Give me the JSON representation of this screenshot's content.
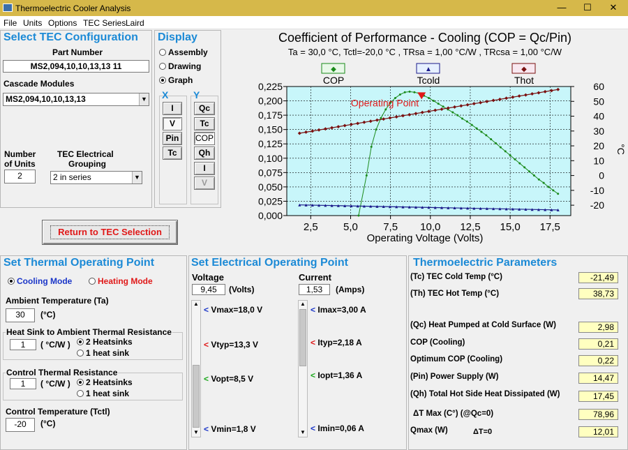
{
  "window": {
    "title": "Thermoelectric Cooler Analysis",
    "minimize": "—",
    "maximize": "☐",
    "close": "✕"
  },
  "menu": [
    "File",
    "Units",
    "Options",
    "TEC Series",
    "Laird"
  ],
  "tec_config": {
    "title": "Select TEC Configuration",
    "part_number_label": "Part Number",
    "part_number": "MS2,094,10,10,13,13 11",
    "cascade_label": "Cascade Modules",
    "cascade_value": "MS2,094,10,10,13,13",
    "units_label_1": "Number",
    "units_label_2": "of Units",
    "units_value": "2",
    "grouping_label_1": "TEC Electrical",
    "grouping_label_2": "Grouping",
    "grouping_value": "2 in series",
    "return_button": "Return to TEC Selection"
  },
  "display": {
    "title": "Display",
    "options": [
      "Assembly",
      "Drawing",
      "Graph"
    ],
    "selected": "Graph",
    "x_label": "X",
    "y_label": "Y",
    "x_buttons": [
      "I",
      "V",
      "Pin",
      "Tc"
    ],
    "y_buttons": [
      "Qc",
      "Tc",
      "COP",
      "Qh",
      "I",
      "V"
    ]
  },
  "thermal": {
    "title": "Set Thermal Operating Point",
    "cooling": "Cooling Mode",
    "heating": "Heating Mode",
    "ambient_label": "Ambient Temperature (Ta)",
    "ambient_value": "30",
    "celsius": "(°C)",
    "hs_title": "Heat Sink to Ambient Thermal Resistance",
    "hs_value": "1",
    "cw": "( °C/W )",
    "opt_2hs": "2 Heatsinks",
    "opt_1hs": "1 heat sink",
    "ctrl_title": "Control Thermal Resistance",
    "ctrl_value": "1",
    "control_temp_label": "Control Temperature (Tctl)",
    "control_temp_value": "-20"
  },
  "electrical": {
    "title": "Set Electrical Operating Point",
    "voltage_label": "Voltage",
    "voltage_value": "9,45",
    "volts": "(Volts)",
    "current_label": "Current",
    "current_value": "1,53",
    "amps": "(Amps)",
    "v_marks": [
      "Vmax=18,0 V",
      "Vtyp=13,3 V",
      "Vopt=8,5 V",
      "Vmin=1,8 V"
    ],
    "i_marks": [
      "Imax=3,00 A",
      "Ityp=2,18 A",
      "Iopt=1,36 A",
      "Imin=0,06 A"
    ]
  },
  "params": {
    "title": "Thermoelectric Parameters",
    "rows": [
      {
        "label": "(Tc) TEC Cold Temp (°C)",
        "value": "-21,49"
      },
      {
        "label": "(Th) TEC Hot Temp (°C)",
        "value": "38,73"
      },
      {
        "label": "(Qc) Heat Pumped at Cold Surface (W)",
        "value": "2,98"
      },
      {
        "label": "COP (Cooling)",
        "value": "0,21"
      },
      {
        "label": "Optimum COP (Cooling)",
        "value": "0,22"
      },
      {
        "label": "(Pin) Power Supply (W)",
        "value": "14,47"
      },
      {
        "label": "(Qh) Total Hot Side Heat Dissipated (W)",
        "value": "17,45"
      },
      {
        "label": "ΔT Max (C°) (@Qc=0)",
        "value": "78,96"
      },
      {
        "label": "Qmax (W)",
        "value": "12,01"
      }
    ],
    "dt_zero": "ΔT=0"
  },
  "chart_data": {
    "type": "line",
    "title": "Coefficient of Performance - Cooling (COP = Qc/Pin)",
    "subtitle": "Ta = 30,0 °C, Tctl=-20,0 °C , TRsa = 1,00 °C/W , TRcsa = 1,00 °C/W",
    "xlabel": "Operating Voltage (Volts)",
    "ylabel_right": "°C",
    "xlim": [
      1.0,
      18.8
    ],
    "ylim_left": [
      0,
      0.225
    ],
    "ylim_right": [
      -27,
      60
    ],
    "x_ticks": [
      "2,5",
      "5,0",
      "7,5",
      "10,0",
      "12,5",
      "15,0",
      "17,5"
    ],
    "x_tick_values": [
      2.5,
      5,
      7.5,
      10,
      12.5,
      15,
      17.5
    ],
    "left_ticks": [
      "0,000",
      "0,025",
      "0,050",
      "0,075",
      "0,100",
      "0,125",
      "0,150",
      "0,175",
      "0,200",
      "0,225"
    ],
    "right_ticks": [
      "-20",
      "-10",
      "0",
      "10",
      "20",
      "30",
      "40",
      "50",
      "60"
    ],
    "annotation": "Operating Point",
    "operating_point": {
      "x": 9.45,
      "y": 0.21
    },
    "legend": [
      "COP",
      "Tcold",
      "Thot"
    ],
    "series": [
      {
        "name": "COP",
        "axis": "left",
        "color": "#1a8a1a",
        "x": [
          5.5,
          6.0,
          6.3,
          6.6,
          6.9,
          7.2,
          7.5,
          7.8,
          8.1,
          8.4,
          8.7,
          9.0,
          9.3,
          9.6,
          9.9,
          10.2,
          10.5,
          10.8,
          11.1,
          11.4,
          11.7,
          12.0,
          12.3,
          12.6,
          12.9,
          13.2,
          13.5,
          13.8,
          14.1,
          14.4,
          14.7,
          15.0,
          15.3,
          15.6,
          15.9,
          16.2,
          16.5,
          16.8,
          17.1,
          17.4,
          17.7,
          18.0
        ],
        "y": [
          0.0,
          0.07,
          0.12,
          0.15,
          0.17,
          0.185,
          0.197,
          0.205,
          0.211,
          0.215,
          0.216,
          0.215,
          0.213,
          0.209,
          0.205,
          0.2,
          0.195,
          0.19,
          0.185,
          0.18,
          0.175,
          0.169,
          0.164,
          0.158,
          0.152,
          0.146,
          0.14,
          0.133,
          0.126,
          0.119,
          0.112,
          0.105,
          0.098,
          0.091,
          0.084,
          0.077,
          0.07,
          0.063,
          0.057,
          0.05,
          0.044,
          0.038
        ]
      },
      {
        "name": "Tcold",
        "axis": "right",
        "color": "#1a1a8a",
        "x": [
          1.8,
          18.0
        ],
        "y": [
          -19.8,
          -23.2
        ]
      },
      {
        "name": "Thot",
        "axis": "right",
        "color": "#7a1010",
        "x": [
          1.8,
          18.0
        ],
        "y": [
          28.5,
          58.0
        ]
      }
    ]
  }
}
